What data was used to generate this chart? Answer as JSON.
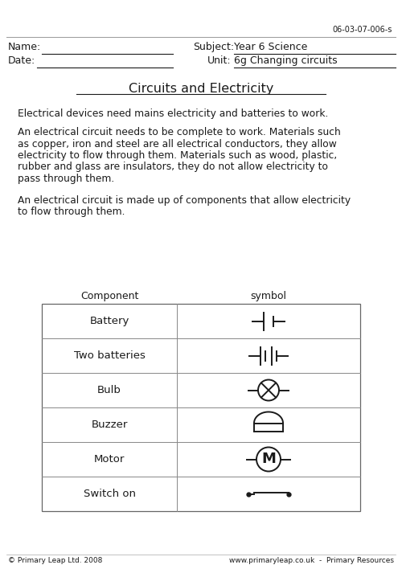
{
  "bg_color": "#ffffff",
  "code": "06-03-07-006-s",
  "name_label": "Name:",
  "date_label": "Date:",
  "subject_label": "Subject:",
  "subject_value": "Year 6 Science",
  "unit_label": "Unit:",
  "unit_value": "6g Changing circuits",
  "title": "Circuits and Electricity",
  "para1": "Electrical devices need mains electricity and batteries to work.",
  "para2_lines": [
    "An electrical circuit needs to be complete to work. Materials such",
    "as copper, iron and steel are all electrical conductors, they allow",
    "electricity to flow through them. Materials such as wood, plastic,",
    "rubber and glass are insulators, they do not allow electricity to",
    "pass through them."
  ],
  "para3_lines": [
    "An electrical circuit is made up of components that allow electricity",
    "to flow through them."
  ],
  "table_header_component": "Component",
  "table_header_symbol": "symbol",
  "table_rows": [
    "Battery",
    "Two batteries",
    "Bulb",
    "Buzzer",
    "Motor",
    "Switch on"
  ],
  "footer_left": "© Primary Leap Ltd. 2008",
  "footer_right": "www.primaryleap.co.uk  -  Primary Resources",
  "font_color": "#1a1a1a",
  "line_color": "#555555"
}
